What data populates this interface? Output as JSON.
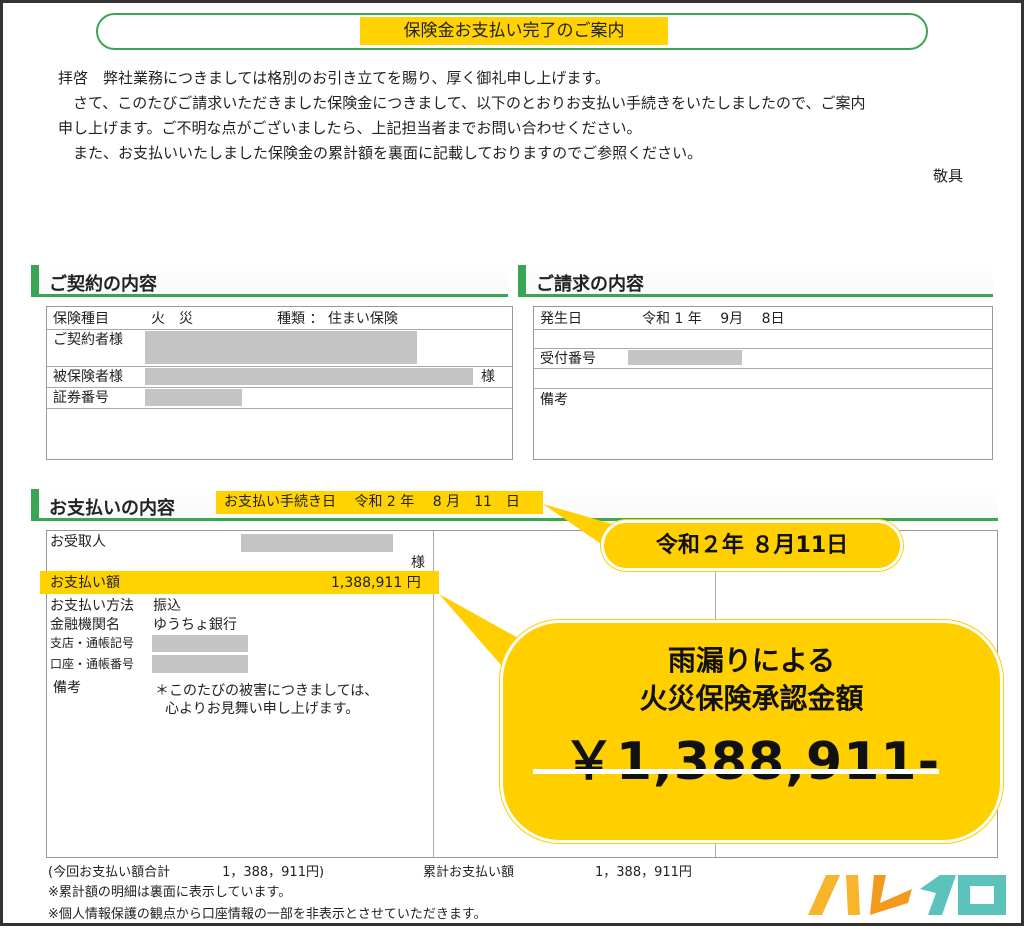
{
  "title": "保険金お支払い完了のご案内",
  "letter": {
    "lines": [
      "拝啓　弊社業務につきましては格別のお引き立てを賜り、厚く御礼申し上げます。",
      "　さて、このたびご請求いただきました保険金につきまして、以下のとおりお支払い手続きをいたしましたので、ご案内",
      "申し上げます。ご不明な点がございましたら、上記担当者までお問い合わせください。",
      "　また、お支払いいたしました保険金の累計額を裏面に記載しておりますのでご参照ください。"
    ],
    "closing": "敬具"
  },
  "contract": {
    "heading": "ご契約の内容",
    "type_label": "保険種目",
    "type_value": "火　災",
    "kind": "種類 ： 住まい保険",
    "holder_label": "ご契約者様",
    "insured_label": "被保険者様",
    "insured_suffix": "様",
    "policy_label": "証券番号"
  },
  "claim": {
    "heading": "ご請求の内容",
    "date_label": "発生日",
    "date_value": "令和 1 年　 9月　 8日",
    "receipt_label": "受付番号",
    "notes_label": "備考"
  },
  "payment": {
    "heading": "お支払いの内容",
    "procedure_date": "お支払い手続き日　 令和 2 年　 8 月　11　日",
    "recipient_label": "お受取人",
    "recipient_suffix": "様",
    "amount_label": "お支払い額",
    "amount_value": "1,388,911 円",
    "method_label": "お支払い方法",
    "method_value": "振込",
    "bank_label": "金融機関名",
    "bank_value": "ゆうちょ銀行",
    "branch_label": "支店・通帳記号",
    "account_label": "口座・通帳番号",
    "notes_label": "備考",
    "notes_line1": "＊このたびの被害につきましては、",
    "notes_line2": "心よりお見舞い申し上げます。"
  },
  "callouts": {
    "date": "令和２年 ８月11日",
    "line1": "雨漏りによる",
    "line2": "火災保険承認金額",
    "amount": "￥1,388,911-"
  },
  "footer": {
    "total": "(今回お支払い額合計　　　　1，388，911円)",
    "cumulative_label": "累計お支払い額",
    "cumulative_value": "1，388，911円",
    "note1": "※累計額の明細は裏面に表示しています。",
    "note2": "※個人情報保護の観点から口座情報の一部を非表示とさせていただきます。"
  },
  "logo": "ハレイロ",
  "colors": {
    "green": "#3aa655",
    "yellow": "#ffd200",
    "redaction": "#c4c4c4"
  }
}
